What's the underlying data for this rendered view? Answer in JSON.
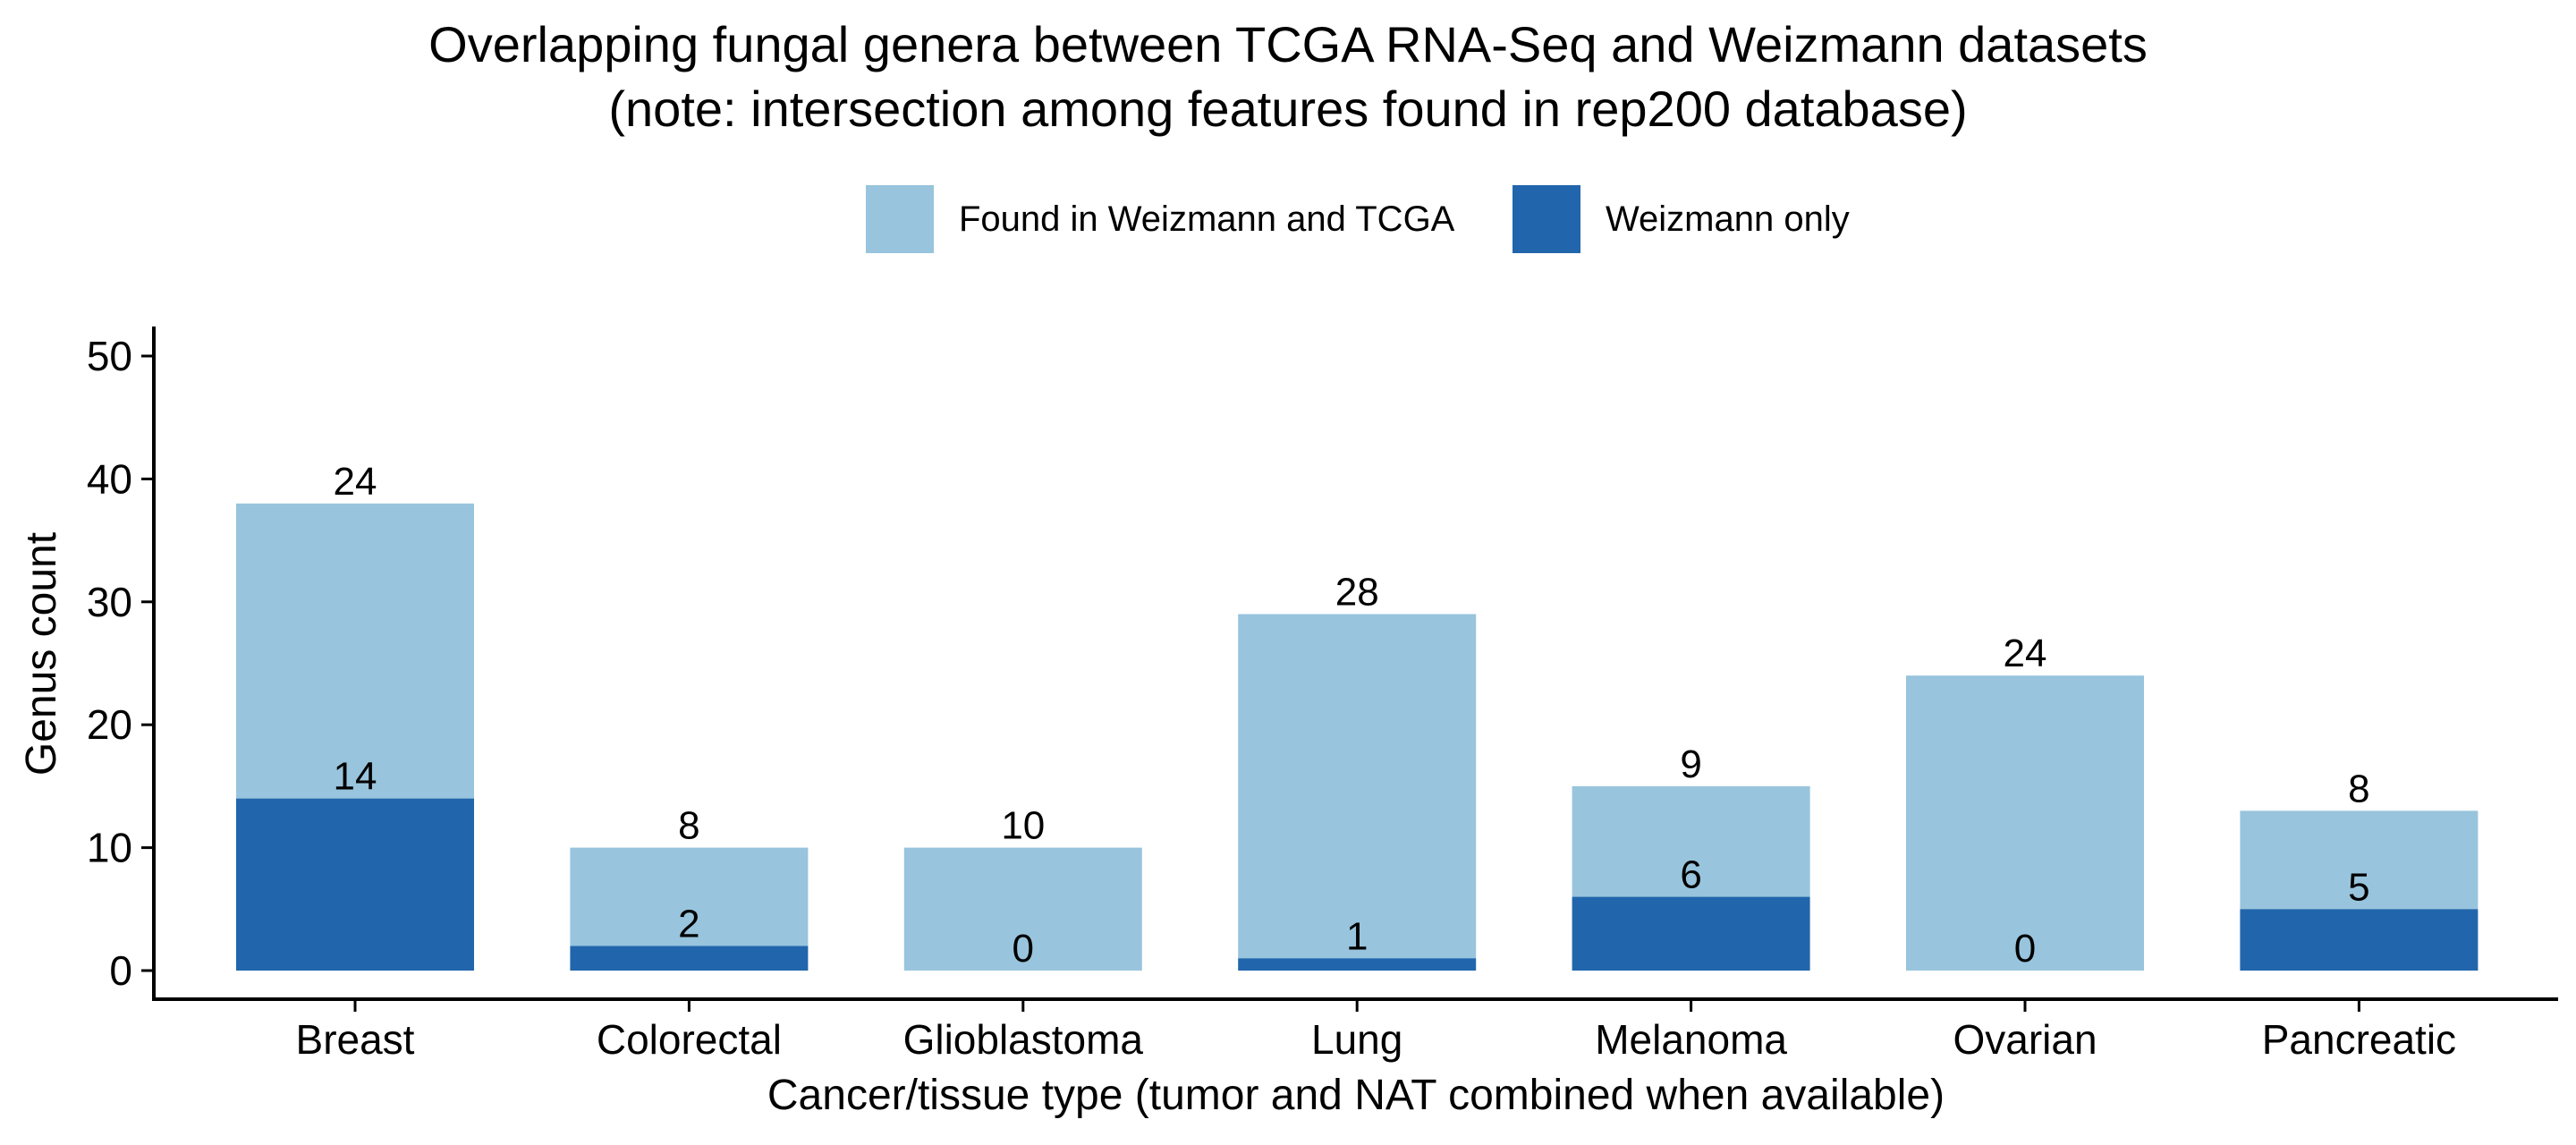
{
  "chart_data": {
    "type": "bar",
    "stacked": true,
    "title": "Overlapping fungal genera between TCGA RNA-Seq and Weizmann datasets",
    "subtitle": "(note: intersection among features found in rep200 database)",
    "xlabel": "Cancer/tissue type (tumor and NAT combined when available)",
    "ylabel": "Genus count",
    "ylim": [
      0,
      52
    ],
    "yticks": [
      0,
      10,
      20,
      30,
      40,
      50
    ],
    "grid": false,
    "legend_position": "top",
    "categories": [
      "Breast",
      "Colorectal",
      "Glioblastoma",
      "Lung",
      "Melanoma",
      "Ovarian",
      "Pancreatic"
    ],
    "series": [
      {
        "name": "Weizmann only",
        "color": "#2166ac",
        "values": [
          14,
          2,
          0,
          1,
          6,
          0,
          5
        ]
      },
      {
        "name": "Found in Weizmann and TCGA",
        "color": "#98c4dd",
        "values": [
          24,
          8,
          10,
          28,
          9,
          24,
          8
        ]
      }
    ]
  }
}
